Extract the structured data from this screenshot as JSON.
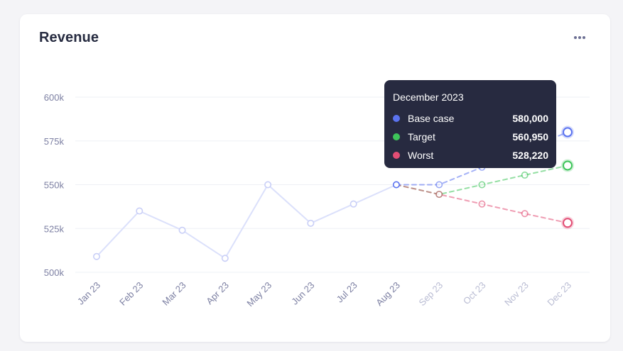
{
  "card": {
    "title": "Revenue",
    "menu_icon": "more-horizontal-icon"
  },
  "tooltip": {
    "title": "December 2023",
    "rows": [
      {
        "name": "Base case",
        "value": "580,000",
        "color": "#5b73f0"
      },
      {
        "name": "Target",
        "value": "560,950",
        "color": "#3ec45a"
      },
      {
        "name": "Worst",
        "value": "528,220",
        "color": "#e24d74"
      }
    ]
  },
  "chart_data": {
    "type": "line",
    "categories": [
      "Jan 23",
      "Feb 23",
      "Mar 23",
      "Apr 23",
      "May 23",
      "Jun 23",
      "Jul 23",
      "Aug 23",
      "Sep 23",
      "Oct 23",
      "Nov 23",
      "Dec 23"
    ],
    "ylim": [
      500000,
      600000
    ],
    "yticks": [
      500000,
      525000,
      550000,
      575000,
      600000
    ],
    "ytick_labels": [
      "500k",
      "525k",
      "550k",
      "575k",
      "600k"
    ],
    "grid": true,
    "highlighted_category": "Dec 23",
    "series": [
      {
        "key": "actual",
        "color": "#dbe0fb",
        "dashed": false,
        "values": [
          509000,
          535000,
          524000,
          508000,
          550000,
          528000,
          539000,
          550000,
          null,
          null,
          null,
          null
        ]
      },
      {
        "key": "base",
        "name": "Base case",
        "color": "#5b73f0",
        "dashed": true,
        "values": [
          null,
          null,
          null,
          null,
          null,
          null,
          null,
          550000,
          550000,
          560000,
          570000,
          580000
        ]
      },
      {
        "key": "target",
        "name": "Target",
        "color": "#3ec45a",
        "dashed": true,
        "values": [
          null,
          null,
          null,
          null,
          null,
          null,
          null,
          550000,
          544500,
          550000,
          555500,
          560950
        ]
      },
      {
        "key": "worst",
        "name": "Worst",
        "color": "#e24d74",
        "dashed": true,
        "values": [
          null,
          null,
          null,
          null,
          null,
          null,
          null,
          550000,
          544500,
          539000,
          533500,
          528220
        ]
      }
    ]
  }
}
